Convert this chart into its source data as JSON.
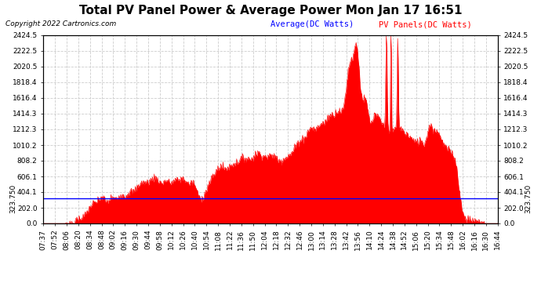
{
  "title": "Total PV Panel Power & Average Power Mon Jan 17 16:51",
  "copyright": "Copyright 2022 Cartronics.com",
  "legend_avg": "Average(DC Watts)",
  "legend_pv": "PV Panels(DC Watts)",
  "avg_color": "blue",
  "pv_color": "red",
  "fill_color": "red",
  "background_color": "white",
  "grid_color": "#cccccc",
  "grid_style": "--",
  "ylim": [
    0.0,
    2424.5
  ],
  "yticks": [
    0.0,
    202.0,
    404.1,
    606.1,
    808.2,
    1010.2,
    1212.3,
    1414.3,
    1616.4,
    1818.4,
    2020.5,
    2222.5,
    2424.5
  ],
  "ytick_labels": [
    "0.0",
    "202.0",
    "404.1",
    "606.1",
    "808.2",
    "1010.2",
    "1212.3",
    "1414.3",
    "1616.4",
    "1818.4",
    "2020.5",
    "2222.5",
    "2424.5"
  ],
  "hline_value": 323.75,
  "hline_color": "blue",
  "xtick_labels": [
    "07:37",
    "07:52",
    "08:06",
    "08:20",
    "08:34",
    "08:48",
    "09:02",
    "09:16",
    "09:30",
    "09:44",
    "09:58",
    "10:12",
    "10:26",
    "10:40",
    "10:54",
    "11:08",
    "11:22",
    "11:36",
    "11:50",
    "12:04",
    "12:18",
    "12:32",
    "12:46",
    "13:00",
    "13:14",
    "13:28",
    "13:42",
    "13:56",
    "14:10",
    "14:24",
    "14:38",
    "14:52",
    "15:06",
    "15:20",
    "15:34",
    "15:48",
    "16:02",
    "16:16",
    "16:30",
    "16:44"
  ],
  "title_fontsize": 11,
  "axis_fontsize": 6.5,
  "copyright_fontsize": 6.5,
  "legend_fontsize": 7.5
}
